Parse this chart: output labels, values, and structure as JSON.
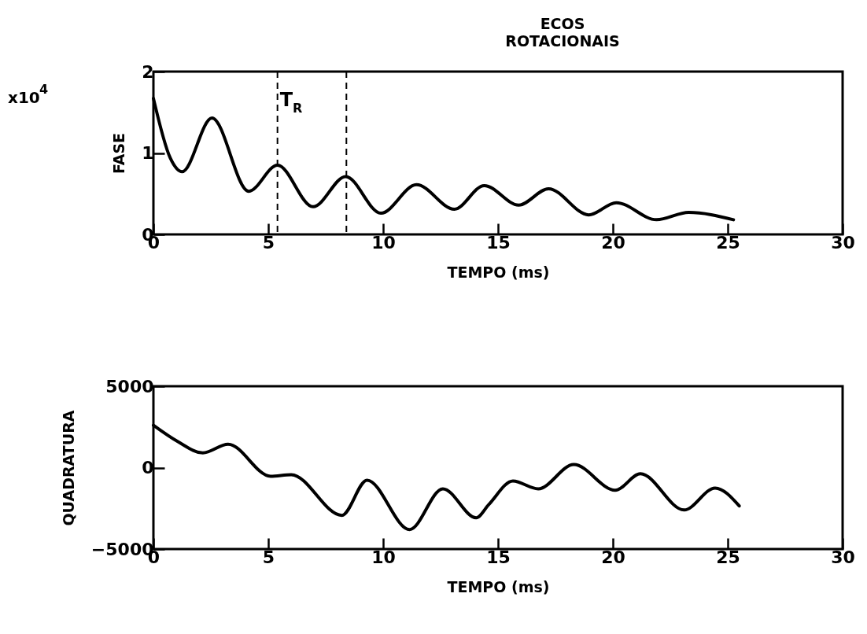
{
  "chart_data": [
    {
      "type": "line",
      "ylabel": "FASE",
      "xlabel": "TEMPO (ms)",
      "xlim": [
        0,
        30
      ],
      "xticks": [
        0,
        5,
        10,
        15,
        20,
        25,
        30
      ],
      "ylim": [
        0,
        2
      ],
      "yticks": [
        0,
        1,
        2
      ],
      "grid": false,
      "marker": "none",
      "line_style": "solid",
      "annotations": [
        "x10$^{4}$",
        "ECOS ROTACIONAIS",
        "T$_{R}$"
      ],
      "ref_lines": [
        {
          "axis": "x",
          "value": 5.4,
          "label": null,
          "line_style": "dashed"
        },
        {
          "axis": "x",
          "value": 8.4,
          "label": null,
          "line_style": "dashed"
        }
      ],
      "series": [
        {
          "color": "#000000",
          "x": [
            0,
            0.73,
            1.25,
            2.55,
            4.15,
            5.4,
            6.95,
            8.37,
            9.9,
            11.45,
            13.1,
            14.4,
            15.9,
            17.2,
            18.95,
            20.15,
            21.9,
            23.3,
            25.25
          ],
          "values": [
            1.67,
            0.94,
            0.77,
            1.43,
            0.53,
            0.85,
            0.34,
            0.71,
            0.26,
            0.61,
            0.31,
            0.6,
            0.36,
            0.56,
            0.24,
            0.39,
            0.18,
            0.27,
            0.18
          ]
        }
      ]
    },
    {
      "type": "line",
      "ylabel": "QUADRATURA",
      "xlabel": "TEMPO (ms)",
      "xlim": [
        0,
        30
      ],
      "xticks": [
        0,
        5,
        10,
        15,
        20,
        25,
        30
      ],
      "ylim": [
        -5000,
        5000
      ],
      "yticks": [
        {
          "value": -5000,
          "label": "−5000"
        },
        0,
        5000
      ],
      "grid": false,
      "marker": "none",
      "line_style": "solid",
      "series": [
        {
          "color": "#000000",
          "x": [
            0,
            1.07,
            2.15,
            3.25,
            5.1,
            6.0,
            8.2,
            9.3,
            11.15,
            12.6,
            14.05,
            14.6,
            15.65,
            16.75,
            18.3,
            20.1,
            21.2,
            23.1,
            24.45,
            25.5
          ],
          "values": [
            2600,
            1590,
            910,
            1440,
            -530,
            -430,
            -2930,
            -770,
            -3800,
            -1300,
            -3080,
            -2260,
            -820,
            -1300,
            190,
            -1390,
            -380,
            -2600,
            -1250,
            -2350
          ]
        }
      ]
    }
  ]
}
